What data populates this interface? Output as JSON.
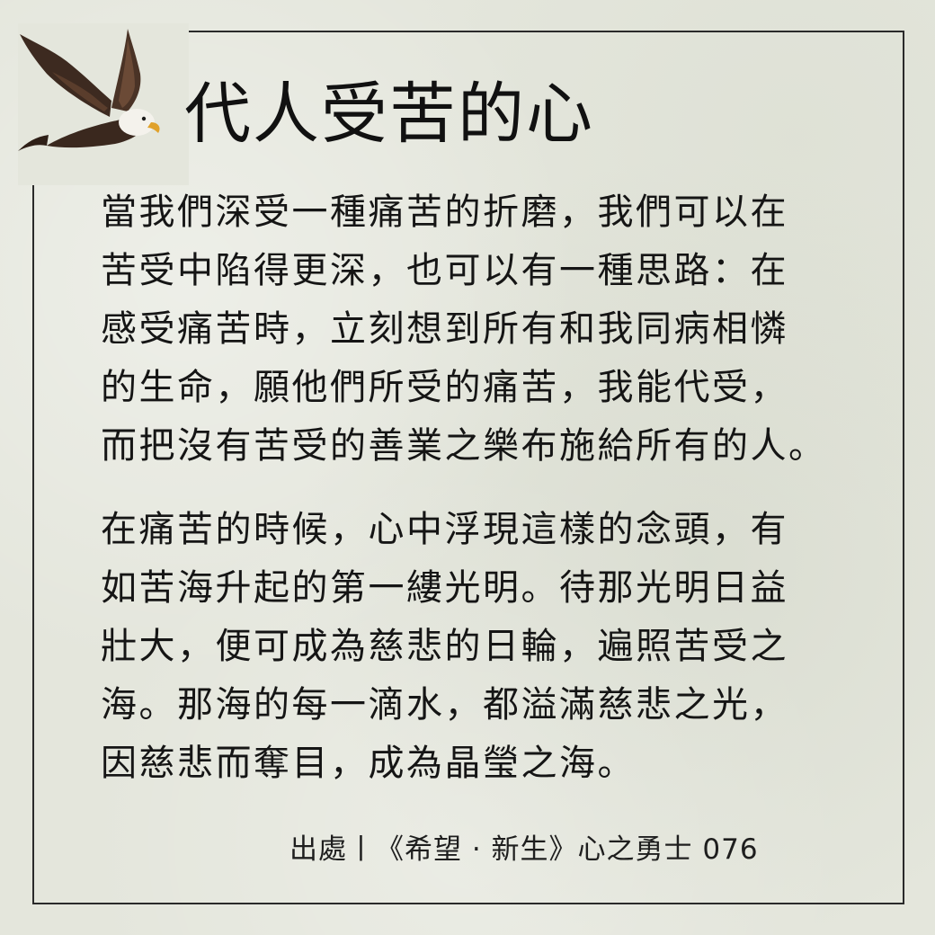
{
  "title": "代人受苦的心",
  "paragraphs": [
    {
      "lines": [
        "當我們深受一種痛苦的折磨，我們可以在",
        "苦受中陷得更深，也可以有一種思路：在",
        "感受痛苦時，立刻想到所有和我同病相憐",
        "的生命，願他們所受的痛苦，我能代受，",
        "而把沒有苦受的善業之樂布施給所有的人。"
      ]
    },
    {
      "lines": [
        "在痛苦的時候，心中浮現這樣的念頭，有",
        "如苦海升起的第一縷光明。待那光明日益",
        "壯大，便可成為慈悲的日輪，遍照苦受之",
        "海。那海的每一滴水，都溢滿慈悲之光，",
        "因慈悲而奪目，成為晶瑩之海。"
      ]
    }
  ],
  "source": "出處丨《希望 · 新生》心之勇士 076",
  "colors": {
    "background": "#e4e6dc",
    "text": "#151515",
    "frame": "#2a2a2a"
  },
  "icons": {
    "decoration": "eagle-illustration"
  }
}
